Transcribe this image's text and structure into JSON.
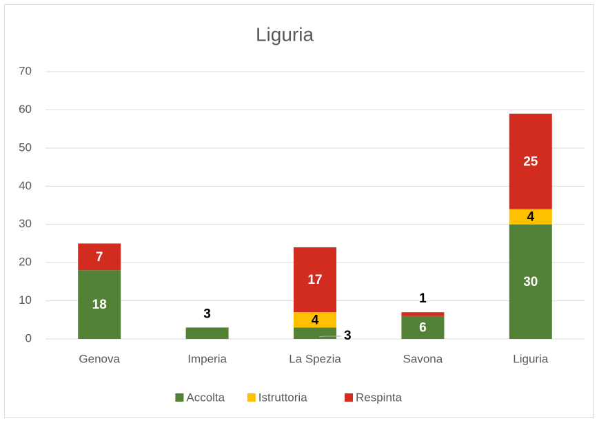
{
  "chart_data": {
    "type": "stacked_bar",
    "title": "Liguria",
    "categories": [
      "Genova",
      "Imperia",
      "La Spezia",
      "Savona",
      "Liguria"
    ],
    "series": [
      {
        "name": "Accolta",
        "color": "#538135",
        "values": [
          18,
          3,
          3,
          6,
          30
        ]
      },
      {
        "name": "Istruttoria",
        "color": "#ffc000",
        "values": [
          null,
          null,
          4,
          null,
          4
        ]
      },
      {
        "name": "Respinta",
        "color": "#d22b1f",
        "values": [
          7,
          null,
          17,
          1,
          25
        ]
      }
    ],
    "ylim": [
      0,
      70
    ],
    "yticks": [
      0,
      10,
      20,
      30,
      40,
      50,
      60,
      70
    ],
    "grid": true,
    "legend": "bottom"
  }
}
